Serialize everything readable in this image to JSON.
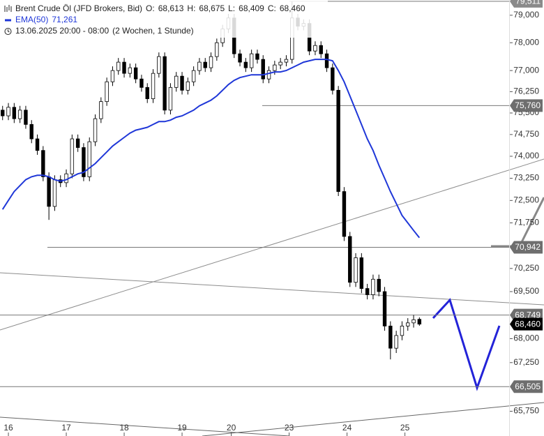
{
  "chart_data": {
    "type": "candlestick",
    "title": "Brent Crude Öl (JFD Brokers, Bid)",
    "ohlc_legend": [
      {
        "key": "O:",
        "value": 68.613,
        "label": "68,613"
      },
      {
        "key": "H:",
        "value": 68.675,
        "label": "68,675"
      },
      {
        "key": "L:",
        "value": 68.409,
        "label": "68,409"
      },
      {
        "key": "C:",
        "value": 68.46,
        "label": "68,460"
      }
    ],
    "period": "13.06.2025 20:00 - 08:00",
    "interval": "(2 Wochen, 1 Stunde)",
    "log_scale": true,
    "ylim": [
      65.0,
      79.56
    ],
    "xlim": [
      -0.45,
      87.5
    ],
    "xticks": [
      {
        "value": 1,
        "label": "16"
      },
      {
        "value": 11,
        "label": "17"
      },
      {
        "value": 21,
        "label": "18"
      },
      {
        "value": 31,
        "label": "19"
      },
      {
        "value": 39.5,
        "label": "20"
      },
      {
        "value": 49.5,
        "label": "23"
      },
      {
        "value": 59.5,
        "label": "24"
      },
      {
        "value": 69.5,
        "label": "25"
      }
    ],
    "yticks": [
      {
        "value": 79,
        "label": "79,000"
      },
      {
        "value": 78,
        "label": "78,000"
      },
      {
        "value": 77,
        "label": "77,000"
      },
      {
        "value": 76.25,
        "label": "76,250"
      },
      {
        "value": 75.5,
        "label": "75,500"
      },
      {
        "value": 74.75,
        "label": "74,750"
      },
      {
        "value": 74,
        "label": "74,000"
      },
      {
        "value": 73.25,
        "label": "73,250"
      },
      {
        "value": 72.5,
        "label": "72,500"
      },
      {
        "value": 71.75,
        "label": "71,750"
      },
      {
        "value": 70.25,
        "label": "70,250"
      },
      {
        "value": 69.5,
        "label": "69,500"
      },
      {
        "value": 68,
        "label": "68,000"
      },
      {
        "value": 67.25,
        "label": "67,250"
      },
      {
        "value": 65.75,
        "label": "65,750"
      }
    ],
    "up_color": "#ffffff",
    "down_color": "#000000",
    "open": [
      75.6,
      75.4,
      75.7,
      75.3,
      75.6,
      75.1,
      74.6,
      74.2,
      73.3,
      72.3,
      73.2,
      73.1,
      73.4,
      74.6,
      74.3,
      73.3,
      74.5,
      75.3,
      75.9,
      76.6,
      77.0,
      77.3,
      76.9,
      77.1,
      76.7,
      76.4,
      76.0,
      76.9,
      77.5,
      75.6,
      76.4,
      76.8,
      76.3,
      76.6,
      77.0,
      77.3,
      77.1,
      77.5,
      78.0,
      78.5,
      78.9,
      77.6,
      77.3,
      77.1,
      77.6,
      77.4,
      76.7,
      77.0,
      77.2,
      77.3,
      77.4,
      78.9,
      78.6,
      78.7,
      77.7,
      77.9,
      77.6,
      77.1,
      76.3,
      72.8,
      71.3,
      69.8,
      70.6,
      69.6,
      69.4,
      69.9,
      69.5,
      68.4,
      67.7,
      68.1,
      68.4,
      68.5,
      68.613
    ],
    "high": [
      75.75,
      75.85,
      75.85,
      75.75,
      75.75,
      75.25,
      74.75,
      74.35,
      73.45,
      73.35,
      73.35,
      73.55,
      74.75,
      74.75,
      74.45,
      74.65,
      75.45,
      76.05,
      76.75,
      77.15,
      77.45,
      77.45,
      77.25,
      77.25,
      76.85,
      76.55,
      77.05,
      77.65,
      77.65,
      76.55,
      76.95,
      76.95,
      76.75,
      77.15,
      77.45,
      77.45,
      77.65,
      78.15,
      78.65,
      79.05,
      79.05,
      77.75,
      77.45,
      77.75,
      77.75,
      77.55,
      77.15,
      77.35,
      77.45,
      77.55,
      79.5,
      79.05,
      78.85,
      78.85,
      78.05,
      78.05,
      77.75,
      77.25,
      76.45,
      72.95,
      71.45,
      70.75,
      70.75,
      69.75,
      70.05,
      70.05,
      69.65,
      68.55,
      68.25,
      68.55,
      68.65,
      68.75,
      68.675
    ],
    "low": [
      75.25,
      75.25,
      75.15,
      75.15,
      74.95,
      74.45,
      74.05,
      73.15,
      71.85,
      72.15,
      72.95,
      72.95,
      73.25,
      74.15,
      73.15,
      73.15,
      74.35,
      75.15,
      75.75,
      76.45,
      76.85,
      76.75,
      76.75,
      76.55,
      76.25,
      75.85,
      75.85,
      76.75,
      75.45,
      75.45,
      76.25,
      76.15,
      76.15,
      76.45,
      76.85,
      76.95,
      76.95,
      77.35,
      77.85,
      78.35,
      77.45,
      77.15,
      76.95,
      76.95,
      77.25,
      76.55,
      76.55,
      76.85,
      77.05,
      77.15,
      77.25,
      78.45,
      78.45,
      77.55,
      77.55,
      77.45,
      76.95,
      76.15,
      72.65,
      71.15,
      69.65,
      69.65,
      69.45,
      69.25,
      69.25,
      69.35,
      68.25,
      67.35,
      67.55,
      67.95,
      68.25,
      68.35,
      68.409
    ],
    "close": [
      75.4,
      75.7,
      75.3,
      75.6,
      75.1,
      74.6,
      74.2,
      73.3,
      72.3,
      73.2,
      73.1,
      73.4,
      74.6,
      74.3,
      73.3,
      74.5,
      75.3,
      75.9,
      76.6,
      77.0,
      77.3,
      76.9,
      77.1,
      76.7,
      76.4,
      76.0,
      76.9,
      77.5,
      75.6,
      76.4,
      76.8,
      76.3,
      76.6,
      77.0,
      77.3,
      77.1,
      77.5,
      78.0,
      78.5,
      78.9,
      77.6,
      77.3,
      77.1,
      77.6,
      77.4,
      76.7,
      77.0,
      77.2,
      77.3,
      77.4,
      78.9,
      78.6,
      78.7,
      77.7,
      77.9,
      77.6,
      77.1,
      76.3,
      72.8,
      71.3,
      69.8,
      70.6,
      69.6,
      69.4,
      69.9,
      69.5,
      68.4,
      67.7,
      68.1,
      68.4,
      68.5,
      68.6,
      68.46
    ],
    "ema": {
      "name": "EMA(50)",
      "value": 71.261,
      "label": "71,261",
      "color": "#1f37d8",
      "values": [
        72.2,
        72.5,
        72.8,
        73.0,
        73.2,
        73.3,
        73.35,
        73.35,
        73.3,
        73.2,
        73.15,
        73.2,
        73.3,
        73.4,
        73.45,
        73.6,
        73.75,
        73.95,
        74.15,
        74.35,
        74.5,
        74.65,
        74.8,
        74.9,
        74.95,
        75.0,
        75.1,
        75.2,
        75.2,
        75.25,
        75.35,
        75.4,
        75.5,
        75.6,
        75.75,
        75.85,
        75.95,
        76.1,
        76.3,
        76.5,
        76.65,
        76.75,
        76.8,
        76.85,
        76.85,
        76.85,
        76.9,
        76.95,
        76.95,
        77.0,
        77.1,
        77.2,
        77.3,
        77.35,
        77.4,
        77.4,
        77.4,
        77.35,
        77.0,
        76.6,
        76.1,
        75.6,
        75.1,
        74.6,
        74.2,
        73.7,
        73.25,
        72.8,
        72.4,
        72.0,
        71.75,
        71.5,
        71.26
      ]
    },
    "levels": [
      {
        "value": 79.511,
        "label": "79,511",
        "color": "#8a8a8a"
      },
      {
        "value": 75.76,
        "label": "75,760",
        "color": "#6e6e6e"
      },
      {
        "value": 70.942,
        "label": "70,942",
        "color": "#6e6e6e"
      },
      {
        "value": 68.749,
        "label": "68,749",
        "color": "#6e6e6e"
      },
      {
        "value": 68.46,
        "label": "68,460",
        "color": "#000000"
      },
      {
        "value": 66.505,
        "label": "66,505",
        "color": "#6e6e6e"
      }
    ]
  }
}
